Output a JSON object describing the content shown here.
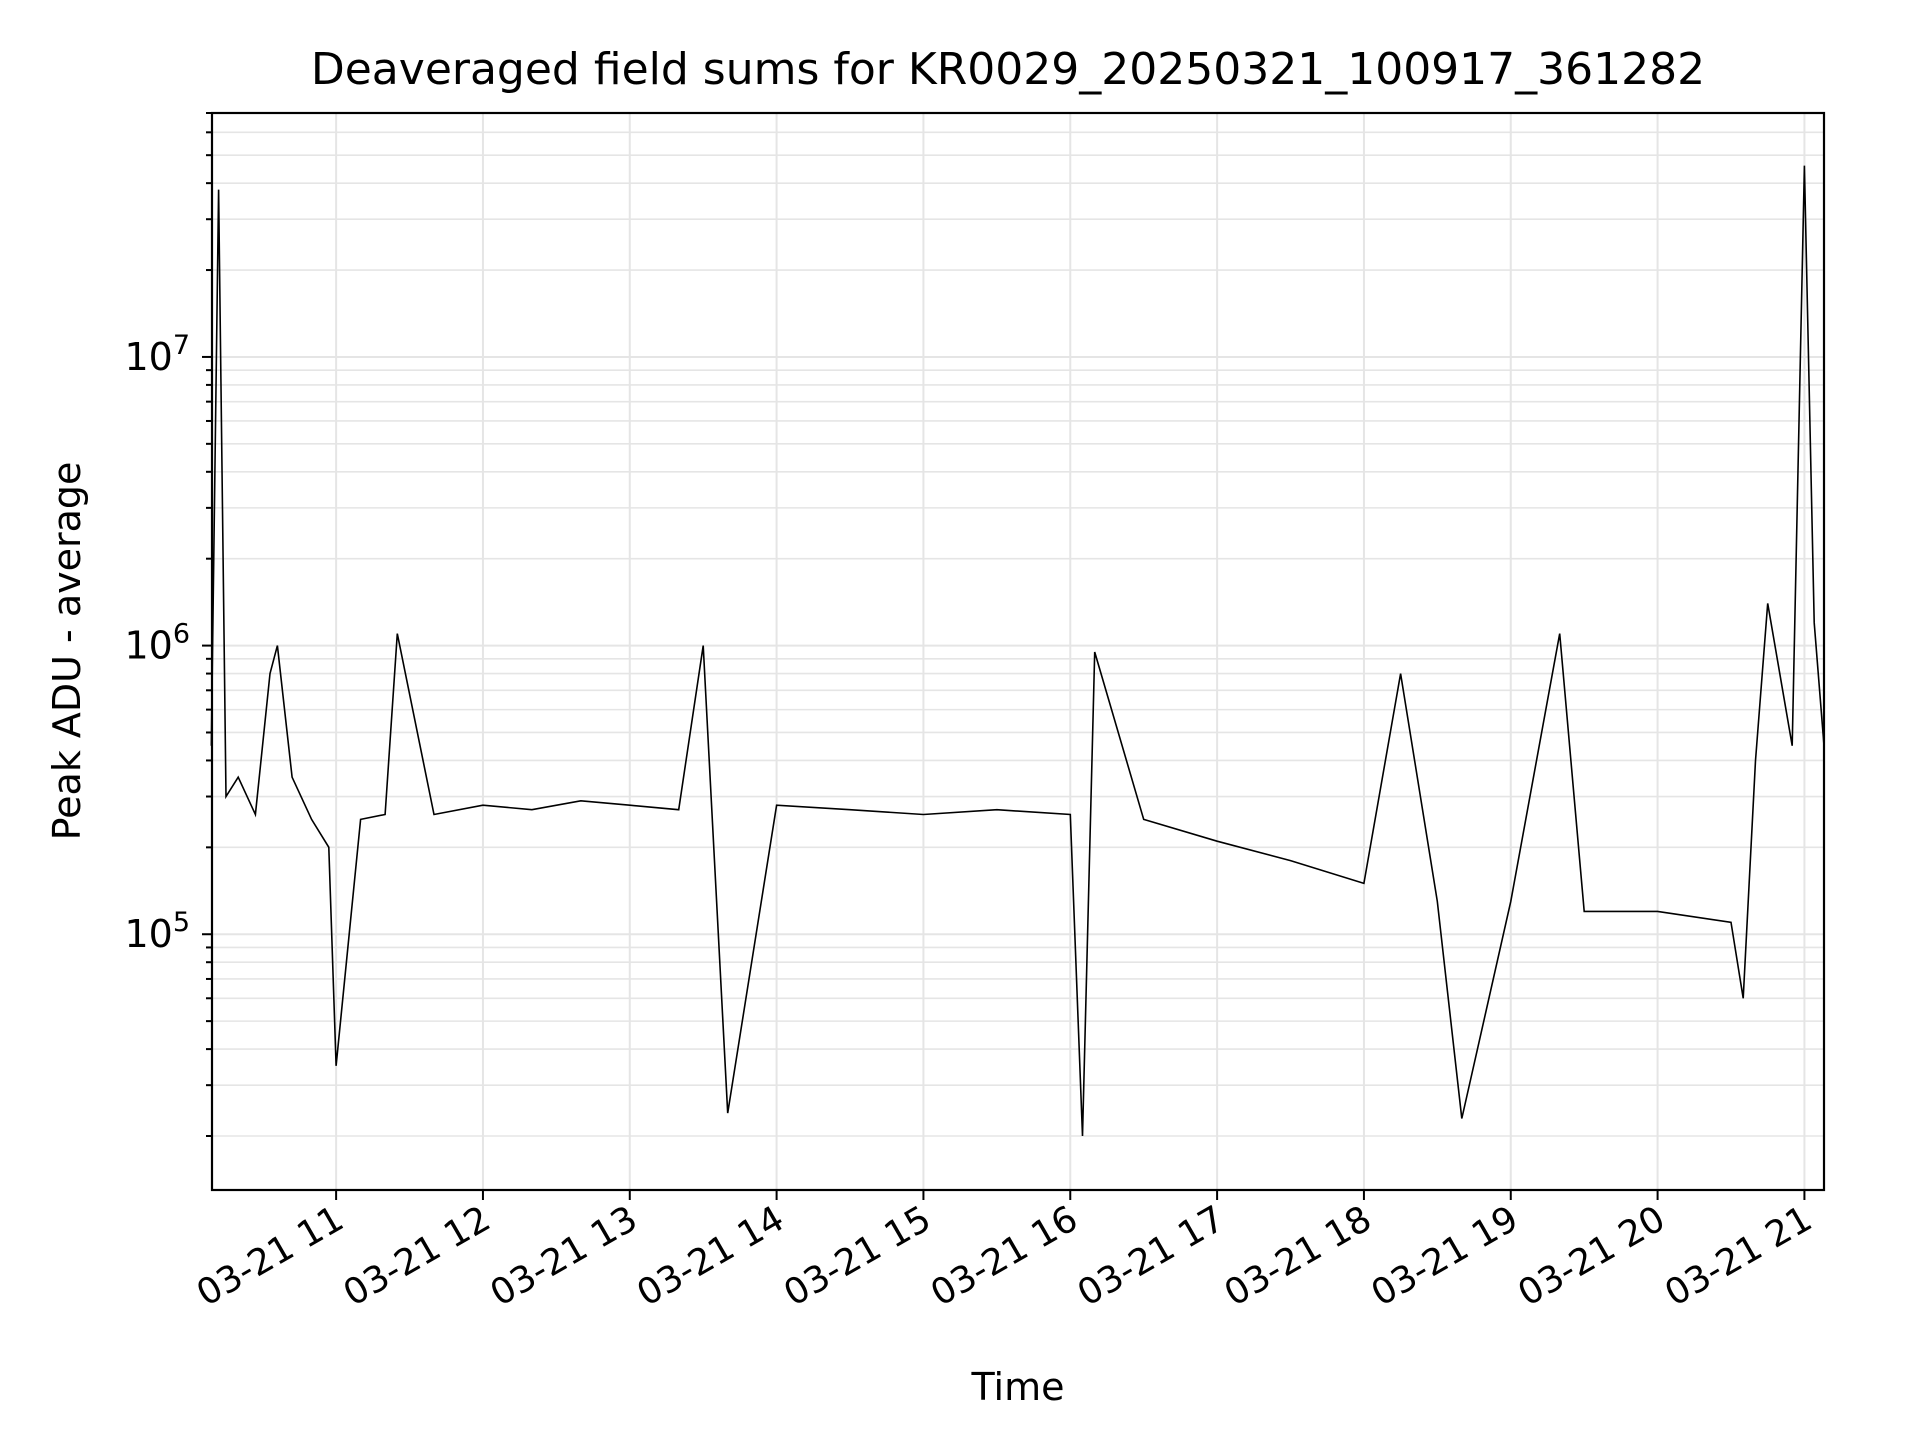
{
  "chart_data": {
    "type": "line",
    "title": "Deaveraged field sums for KR0029_20250321_100917_361282",
    "xlabel": "Time",
    "ylabel": "Peak ADU - average",
    "y_scale": "log",
    "grid": true,
    "grid_minor": true,
    "legend": "none",
    "line_color": "#000000",
    "grid_color": "#e5e5e5",
    "xlim": [
      "2025-03-21 10:09:17",
      "2025-03-21 21:08:00"
    ],
    "ylim": [
      13000,
      70000000
    ],
    "x_ticks": [
      {
        "t": "2025-03-21 11:00",
        "label": "03-21 11"
      },
      {
        "t": "2025-03-21 12:00",
        "label": "03-21 12"
      },
      {
        "t": "2025-03-21 13:00",
        "label": "03-21 13"
      },
      {
        "t": "2025-03-21 14:00",
        "label": "03-21 14"
      },
      {
        "t": "2025-03-21 15:00",
        "label": "03-21 15"
      },
      {
        "t": "2025-03-21 16:00",
        "label": "03-21 16"
      },
      {
        "t": "2025-03-21 17:00",
        "label": "03-21 17"
      },
      {
        "t": "2025-03-21 18:00",
        "label": "03-21 18"
      },
      {
        "t": "2025-03-21 19:00",
        "label": "03-21 19"
      },
      {
        "t": "2025-03-21 20:00",
        "label": "03-21 20"
      },
      {
        "t": "2025-03-21 21:00",
        "label": "03-21 21"
      }
    ],
    "y_ticks": [
      {
        "value": 100000,
        "base": "10",
        "exp": "5"
      },
      {
        "value": 1000000,
        "base": "10",
        "exp": "6"
      },
      {
        "value": 10000000,
        "base": "10",
        "exp": "7"
      }
    ],
    "series": [
      {
        "points": [
          [
            "2025-03-21 10:09",
            450000
          ],
          [
            "2025-03-21 10:12",
            38000000
          ],
          [
            "2025-03-21 10:15",
            300000
          ],
          [
            "2025-03-21 10:20",
            350000
          ],
          [
            "2025-03-21 10:27",
            260000
          ],
          [
            "2025-03-21 10:33",
            800000
          ],
          [
            "2025-03-21 10:36",
            1000000
          ],
          [
            "2025-03-21 10:42",
            350000
          ],
          [
            "2025-03-21 10:50",
            250000
          ],
          [
            "2025-03-21 10:57",
            200000
          ],
          [
            "2025-03-21 11:00",
            35000
          ],
          [
            "2025-03-21 11:10",
            250000
          ],
          [
            "2025-03-21 11:20",
            260000
          ],
          [
            "2025-03-21 11:25",
            1100000
          ],
          [
            "2025-03-21 11:40",
            260000
          ],
          [
            "2025-03-21 12:00",
            280000
          ],
          [
            "2025-03-21 12:20",
            270000
          ],
          [
            "2025-03-21 12:40",
            290000
          ],
          [
            "2025-03-21 13:00",
            280000
          ],
          [
            "2025-03-21 13:20",
            270000
          ],
          [
            "2025-03-21 13:30",
            1000000
          ],
          [
            "2025-03-21 13:40",
            24000
          ],
          [
            "2025-03-21 14:00",
            280000
          ],
          [
            "2025-03-21 14:30",
            270000
          ],
          [
            "2025-03-21 15:00",
            260000
          ],
          [
            "2025-03-21 15:30",
            270000
          ],
          [
            "2025-03-21 16:00",
            260000
          ],
          [
            "2025-03-21 16:05",
            20000
          ],
          [
            "2025-03-21 16:10",
            950000
          ],
          [
            "2025-03-21 16:30",
            250000
          ],
          [
            "2025-03-21 17:00",
            210000
          ],
          [
            "2025-03-21 17:30",
            180000
          ],
          [
            "2025-03-21 18:00",
            150000
          ],
          [
            "2025-03-21 18:15",
            800000
          ],
          [
            "2025-03-21 18:30",
            130000
          ],
          [
            "2025-03-21 18:40",
            23000
          ],
          [
            "2025-03-21 19:00",
            130000
          ],
          [
            "2025-03-21 19:20",
            1100000
          ],
          [
            "2025-03-21 19:30",
            120000
          ],
          [
            "2025-03-21 20:00",
            120000
          ],
          [
            "2025-03-21 20:30",
            110000
          ],
          [
            "2025-03-21 20:35",
            60000
          ],
          [
            "2025-03-21 20:40",
            400000
          ],
          [
            "2025-03-21 20:45",
            1400000
          ],
          [
            "2025-03-21 20:55",
            450000
          ],
          [
            "2025-03-21 21:00",
            46000000
          ],
          [
            "2025-03-21 21:04",
            1200000
          ],
          [
            "2025-03-21 21:08",
            450000
          ]
        ]
      }
    ]
  }
}
